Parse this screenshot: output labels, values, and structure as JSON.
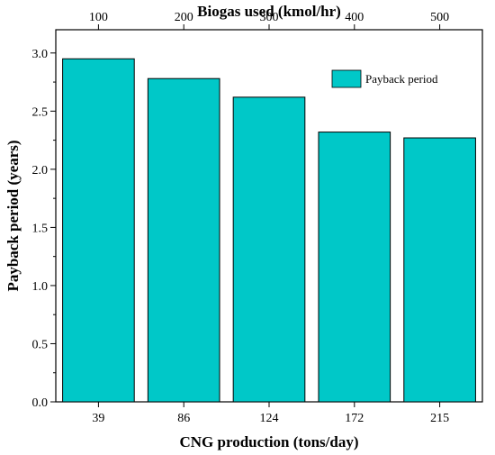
{
  "chart_data": {
    "type": "bar",
    "categories": [
      "39",
      "86",
      "124",
      "172",
      "215"
    ],
    "top_categories": [
      "100",
      "200",
      "300",
      "400",
      "500"
    ],
    "values": [
      2.95,
      2.78,
      2.62,
      2.32,
      2.27
    ],
    "xlabel": "CNG production (tons/day)",
    "x2label": "Biogas used (kmol/hr)",
    "ylabel": "Payback period (years)",
    "ylim": [
      0,
      3.2
    ],
    "yticks": [
      "0.0",
      "0.5",
      "1.0",
      "1.5",
      "2.0",
      "2.5",
      "3.0"
    ],
    "ytick_values": [
      0,
      0.5,
      1.0,
      1.5,
      2.0,
      2.5,
      3.0
    ],
    "grid": false,
    "legend": {
      "position": "top-right",
      "entries": [
        "Payback period"
      ]
    },
    "colors": {
      "bar_fill": "#00C8C8",
      "bar_stroke": "#000000"
    }
  }
}
